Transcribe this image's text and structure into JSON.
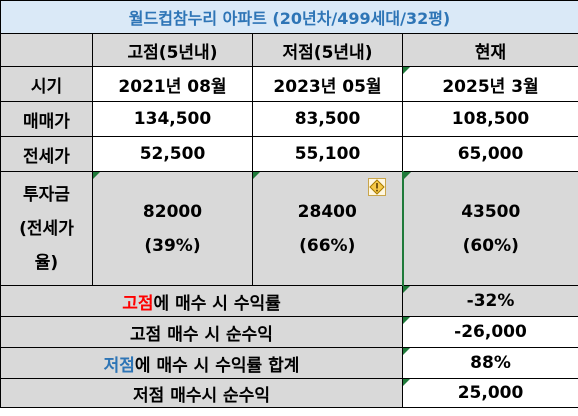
{
  "title": "월드컵참누리 아파트 (20년차/499세대/32평)",
  "headers": {
    "high": "고점(5년내)",
    "low": "저점(5년내)",
    "current": "현재"
  },
  "rows": {
    "period": {
      "label": "시기",
      "high": "2021년 08월",
      "low": "2023년 05월",
      "current": "2025년 3월"
    },
    "sale": {
      "label": "매매가",
      "high": "134,500",
      "low": "83,500",
      "current": "108,500"
    },
    "jeonse": {
      "label": "전세가",
      "high": "52,500",
      "low": "55,100",
      "current": "65,000"
    },
    "invest": {
      "label_lines": [
        "투자금",
        "(전세가",
        "율)"
      ],
      "high_amount": "82000",
      "high_pct": "(39%)",
      "low_amount": "28400",
      "low_pct": "(66%)",
      "current_amount": "43500",
      "current_pct": "(60%)"
    }
  },
  "summary": [
    {
      "label_colored": "고점",
      "label_rest": "에 매수 시 수익률",
      "color": "#ff0000",
      "value": "-32%"
    },
    {
      "label_colored": "",
      "label_rest": "고점 매수 시 순수익",
      "color": "#000000",
      "value": "-26,000"
    },
    {
      "label_colored": "저점",
      "label_rest": "에 매수 시 수익률 합계",
      "color": "#2e75b6",
      "value": "88%"
    },
    {
      "label_colored": "",
      "label_rest": "저점 매수시 순수익",
      "color": "#000000",
      "value": "25,000"
    }
  ],
  "icons": {
    "warning": "warning-icon",
    "error_indicator": "cell-error-indicator-icon"
  }
}
